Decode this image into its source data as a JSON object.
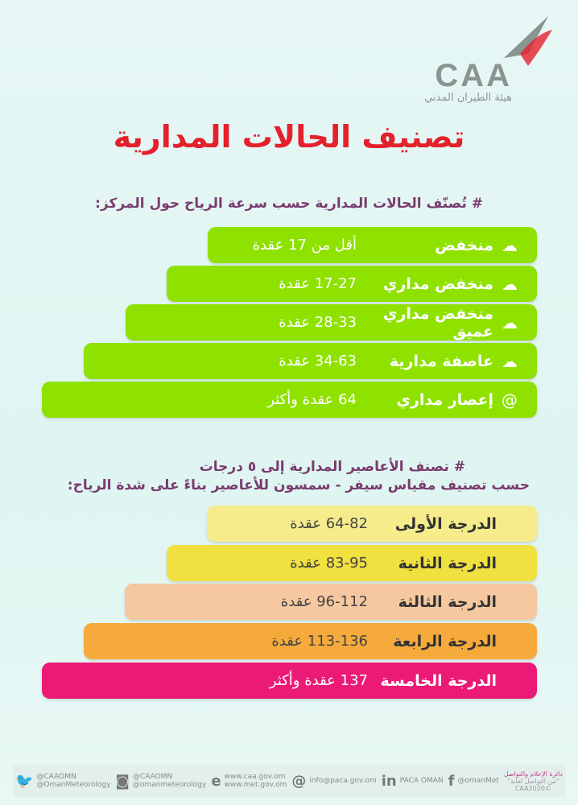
{
  "logo": {
    "text": "CAA",
    "arabic": "هيئة الطيران المدني"
  },
  "title": "تصنيف الحالات المدارية",
  "section1": {
    "heading": "# تُصنّف الحالات المدارية حسب سرعة الرياح حول المركز:",
    "items": [
      {
        "name": "منخفض",
        "value": "أقل من 17 عقدة",
        "icon": "cloud-wind-icon"
      },
      {
        "name": "منخفض مداري",
        "value": "17-27 عقدة",
        "icon": "cloud-wind-icon"
      },
      {
        "name": "منخفض مداري عميق",
        "value": "28-33 عقدة",
        "icon": "cloud-wind-icon"
      },
      {
        "name": "عاصفة مدارية",
        "value": "34-63 عقدة",
        "icon": "cloud-wind-icon"
      },
      {
        "name": "إعصار مداري",
        "value": "64 عقدة وأكثر",
        "icon": "hurricane-icon"
      }
    ],
    "color": "#8fe100"
  },
  "section2": {
    "heading1": "# تصنف الأعاصير المدارية إلى ٥ درجات",
    "heading2": "حسب تصنيف مقياس سيفر - سمسون للأعاصير بناءً على شدة الرياح:",
    "items": [
      {
        "name": "الدرجة الأولى",
        "value": "64-82 عقدة",
        "color": "#f6ec8c"
      },
      {
        "name": "الدرجة الثانية",
        "value": "83-95 عقدة",
        "color": "#f0e040"
      },
      {
        "name": "الدرجة الثالثة",
        "value": "96-112 عقدة",
        "color": "#f5c8a0"
      },
      {
        "name": "الدرجة الرابعة",
        "value": "113-136 عقدة",
        "color": "#f6aa3c"
      },
      {
        "name": "الدرجة الخامسة",
        "value": "137 عقدة وأكثر",
        "color": "#ec1a77"
      }
    ]
  },
  "footer": {
    "twitter": [
      "@CAAOMN",
      "@OmanMeteorology"
    ],
    "instagram": [
      "@CAAOMN",
      "@omanmeteorology"
    ],
    "web": [
      "www.caa.gov.om",
      "www.met.gov.om"
    ],
    "email": "info@paca.gov.om",
    "linkedin": "PACA OMAN",
    "facebook": "@omanMet",
    "dept": [
      "دائرة الإعلام والتواصل",
      "\"من التواصل لغاية\"",
      "©CAA2020"
    ]
  }
}
